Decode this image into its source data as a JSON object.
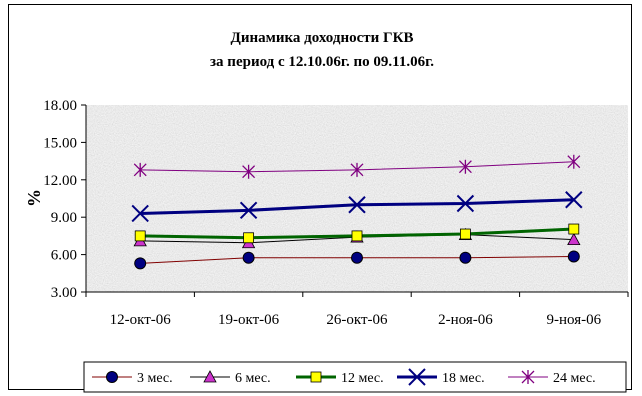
{
  "chart_data": {
    "type": "line",
    "title": "Динамика доходности ГКВ",
    "subtitle": "за период с 12.10.06г. по 09.11.06г.",
    "xlabel": "",
    "ylabel": "%",
    "categories": [
      "12-окт-06",
      "19-окт-06",
      "26-окт-06",
      "2-ноя-06",
      "9-ноя-06"
    ],
    "ylim": [
      3.0,
      18.0
    ],
    "yticks": [
      "3.00",
      "6.00",
      "9.00",
      "12.00",
      "15.00",
      "18.00"
    ],
    "grid": false,
    "legend_position": "bottom",
    "background": "gray-granite texture",
    "series": [
      {
        "name": "3 мес.",
        "values": [
          5.3,
          5.75,
          5.75,
          5.75,
          5.85
        ],
        "color": "#800000",
        "marker": "circle",
        "marker_fill": "#000080",
        "line_width": 1
      },
      {
        "name": "6 мес.",
        "values": [
          7.1,
          6.95,
          7.4,
          7.6,
          7.2
        ],
        "color": "#000000",
        "marker": "triangle",
        "marker_fill": "#cc33cc",
        "line_width": 1
      },
      {
        "name": "12 мес.",
        "values": [
          7.5,
          7.35,
          7.5,
          7.65,
          8.05
        ],
        "color": "#006400",
        "marker": "square",
        "marker_fill": "#ffff00",
        "line_width": 3
      },
      {
        "name": "18 мес.",
        "values": [
          9.3,
          9.55,
          10.0,
          10.1,
          10.4
        ],
        "color": "#000080",
        "marker": "x",
        "marker_fill": "#000080",
        "line_width": 3
      },
      {
        "name": "24 мес.",
        "values": [
          12.8,
          12.65,
          12.8,
          13.05,
          13.45
        ],
        "color": "#800080",
        "marker": "star",
        "marker_fill": "#800080",
        "line_width": 1
      }
    ]
  }
}
